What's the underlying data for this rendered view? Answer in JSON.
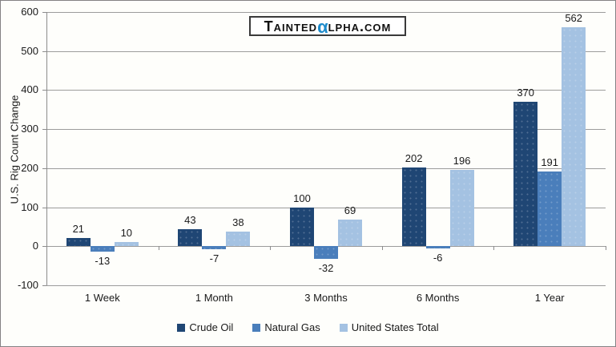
{
  "logo": {
    "prefix": "Tainted",
    "alpha": "α",
    "suffix": "lpha.com",
    "alpha_color": "#1d8bcb",
    "text_color": "#111111"
  },
  "chart_data": {
    "type": "bar",
    "title": "",
    "ylabel": "U.S. Rig Count Change",
    "xlabel": "",
    "ylim": [
      -100,
      600
    ],
    "ytick_step": 100,
    "grid": true,
    "legend_position": "bottom",
    "categories": [
      "1 Week",
      "1 Month",
      "3 Months",
      "6 Months",
      "1 Year"
    ],
    "series": [
      {
        "name": "Crude Oil",
        "color": "#1f4674",
        "values": [
          21,
          43,
          100,
          202,
          370
        ]
      },
      {
        "name": "Natural Gas",
        "color": "#4a7ebb",
        "values": [
          -13,
          -7,
          -32,
          -6,
          191
        ]
      },
      {
        "name": "United States Total",
        "color": "#a4c2e2",
        "values": [
          10,
          38,
          69,
          196,
          562
        ]
      }
    ],
    "value_labels_shown": true
  }
}
